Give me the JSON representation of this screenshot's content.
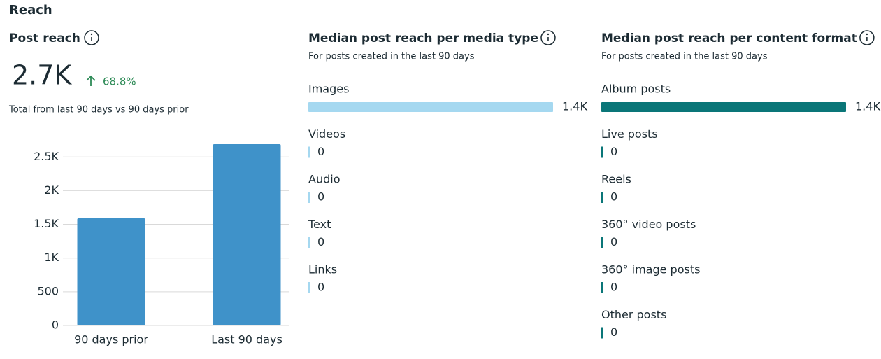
{
  "title": "Reach",
  "chart_data": [
    {
      "type": "bar",
      "title": "Post reach",
      "total": "2.7K",
      "change": "68.8%",
      "subtitle": "Total from last 90 days vs 90 days prior",
      "categories": [
        "90 days prior",
        "Last 90 days"
      ],
      "values": [
        1590,
        2690
      ],
      "color": "#3f92c9",
      "ylim": [
        0,
        2700
      ],
      "yticks": [
        0,
        500,
        {
          "value": 1000,
          "label": "1K"
        },
        {
          "value": 1500,
          "label": "1.5K"
        },
        {
          "value": 2000,
          "label": "2K"
        },
        {
          "value": 2500,
          "label": "2.5K"
        }
      ],
      "grid": true
    },
    {
      "type": "hbar",
      "title": "Median post reach per media type",
      "subtitle": "For posts created in the last 90 days",
      "categories": [
        "Images",
        "Videos",
        "Audio",
        "Text",
        "Links"
      ],
      "values": [
        1400,
        0,
        0,
        0,
        0
      ],
      "value_labels": [
        "1.4K",
        "0",
        "0",
        "0",
        "0"
      ],
      "color": "#a5d8f0"
    },
    {
      "type": "hbar",
      "title": "Median post reach per content format",
      "subtitle": "For posts created in the last 90 days",
      "categories": [
        "Album posts",
        "Live posts",
        "Reels",
        "360° video posts",
        "360° image posts",
        "Other posts"
      ],
      "values": [
        1400,
        0,
        0,
        0,
        0,
        0
      ],
      "value_labels": [
        "1.4K",
        "0",
        "0",
        "0",
        "0",
        "0"
      ],
      "color": "#0a7678"
    }
  ]
}
